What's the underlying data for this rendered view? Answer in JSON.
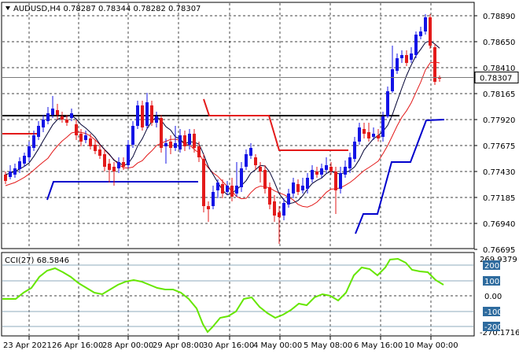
{
  "header": {
    "symbol_line": "AUDUSD,H4  0.78287 0.78344 0.78282 0.78307",
    "collapse_icon": "triangle-down-icon"
  },
  "price_axis": {
    "ticks": [
      "0.78890",
      "0.78650",
      "0.78410",
      "0.78165",
      "0.77920",
      "0.77675",
      "0.77430",
      "0.77185",
      "0.76940",
      "0.76695"
    ],
    "current_price": "0.78307",
    "current_price_value": 0.78307
  },
  "indicator": {
    "label": "CCI(27) 68.5846",
    "scale_top": "269.9379",
    "scale_bottom": "-270.1716",
    "levels": [
      "200",
      "100",
      "0.00",
      "-100",
      "-200"
    ],
    "highlighted_levels": [
      "200",
      "100",
      "-100",
      "-200"
    ]
  },
  "time_axis": {
    "labels": [
      "23 Apr 2021",
      "26 Apr 16:00",
      "28 Apr 00:00",
      "29 Apr 08:00",
      "30 Apr 16:00",
      "4 May 00:00",
      "5 May 08:00",
      "6 May 16:00",
      "10 May 00:00"
    ]
  },
  "colors": {
    "bull": "#1414e6",
    "bear": "#e31a1a",
    "fast_ma": "#000033",
    "slow_ma": "#e31a1a",
    "cci": "#66e600",
    "level_line": "#000000",
    "support_line": "#0000cc"
  }
}
